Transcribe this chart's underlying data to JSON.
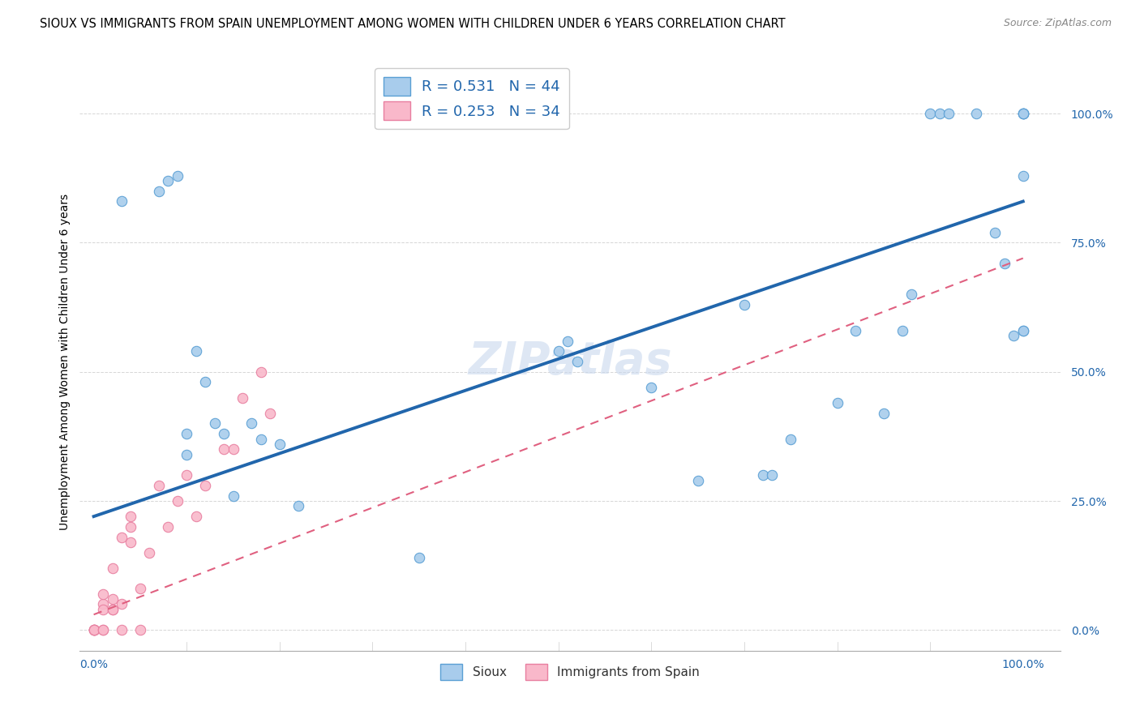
{
  "title": "SIOUX VS IMMIGRANTS FROM SPAIN UNEMPLOYMENT AMONG WOMEN WITH CHILDREN UNDER 6 YEARS CORRELATION CHART",
  "source": "Source: ZipAtlas.com",
  "ylabel": "Unemployment Among Women with Children Under 6 years",
  "watermark": "ZIPatlas",
  "sioux_R": 0.531,
  "sioux_N": 44,
  "spain_R": 0.253,
  "spain_N": 34,
  "sioux_color": "#a8ccec",
  "spain_color": "#f9b8ca",
  "sioux_edge_color": "#5a9fd4",
  "spain_edge_color": "#e87fa0",
  "sioux_line_color": "#2166ac",
  "spain_line_color": "#e06080",
  "legend_labels": [
    "Sioux",
    "Immigrants from Spain"
  ],
  "ytick_labels": [
    "0.0%",
    "25.0%",
    "50.0%",
    "75.0%",
    "100.0%"
  ],
  "ytick_values": [
    0.0,
    0.25,
    0.5,
    0.75,
    1.0
  ],
  "xtick_labels": [
    "0.0%",
    "100.0%"
  ],
  "xtick_values": [
    0.0,
    1.0
  ],
  "sioux_x": [
    0.03,
    0.07,
    0.08,
    0.09,
    0.1,
    0.1,
    0.11,
    0.12,
    0.13,
    0.14,
    0.15,
    0.17,
    0.18,
    0.2,
    0.22,
    0.35,
    0.5,
    0.51,
    0.52,
    0.6,
    0.65,
    0.7,
    0.72,
    0.73,
    0.75,
    0.8,
    0.82,
    0.85,
    0.87,
    0.88,
    0.9,
    0.91,
    0.92,
    0.95,
    0.97,
    0.98,
    0.99,
    1.0,
    1.0,
    1.0,
    1.0,
    1.0,
    1.0,
    1.0
  ],
  "sioux_y": [
    0.83,
    0.85,
    0.87,
    0.88,
    0.38,
    0.34,
    0.54,
    0.48,
    0.4,
    0.38,
    0.26,
    0.4,
    0.37,
    0.36,
    0.24,
    0.14,
    0.54,
    0.56,
    0.52,
    0.47,
    0.29,
    0.63,
    0.3,
    0.3,
    0.37,
    0.44,
    0.58,
    0.42,
    0.58,
    0.65,
    1.0,
    1.0,
    1.0,
    1.0,
    0.77,
    0.71,
    0.57,
    1.0,
    1.0,
    1.0,
    1.0,
    0.88,
    0.58,
    0.58
  ],
  "spain_x": [
    0.0,
    0.0,
    0.0,
    0.0,
    0.0,
    0.01,
    0.01,
    0.01,
    0.01,
    0.01,
    0.02,
    0.02,
    0.02,
    0.02,
    0.03,
    0.03,
    0.03,
    0.04,
    0.04,
    0.04,
    0.05,
    0.05,
    0.06,
    0.07,
    0.08,
    0.09,
    0.1,
    0.11,
    0.12,
    0.14,
    0.15,
    0.16,
    0.18,
    0.19
  ],
  "spain_y": [
    0.0,
    0.0,
    0.0,
    0.0,
    0.0,
    0.0,
    0.0,
    0.05,
    0.07,
    0.04,
    0.04,
    0.04,
    0.06,
    0.12,
    0.0,
    0.05,
    0.18,
    0.2,
    0.17,
    0.22,
    0.0,
    0.08,
    0.15,
    0.28,
    0.2,
    0.25,
    0.3,
    0.22,
    0.28,
    0.35,
    0.35,
    0.45,
    0.5,
    0.42
  ],
  "sioux_line_start_x": 0.0,
  "sioux_line_start_y": 0.22,
  "sioux_line_end_x": 1.0,
  "sioux_line_end_y": 0.83,
  "spain_line_start_x": 0.0,
  "spain_line_start_y": 0.03,
  "spain_line_end_x": 1.0,
  "spain_line_end_y": 0.72,
  "marker_size": 80,
  "background_color": "#ffffff",
  "grid_color": "#cccccc",
  "title_fontsize": 10.5,
  "axis_label_fontsize": 10,
  "tick_fontsize": 10,
  "legend_fontsize": 13,
  "watermark_fontsize": 40,
  "watermark_color": "#c8d8ee",
  "watermark_alpha": 0.6
}
